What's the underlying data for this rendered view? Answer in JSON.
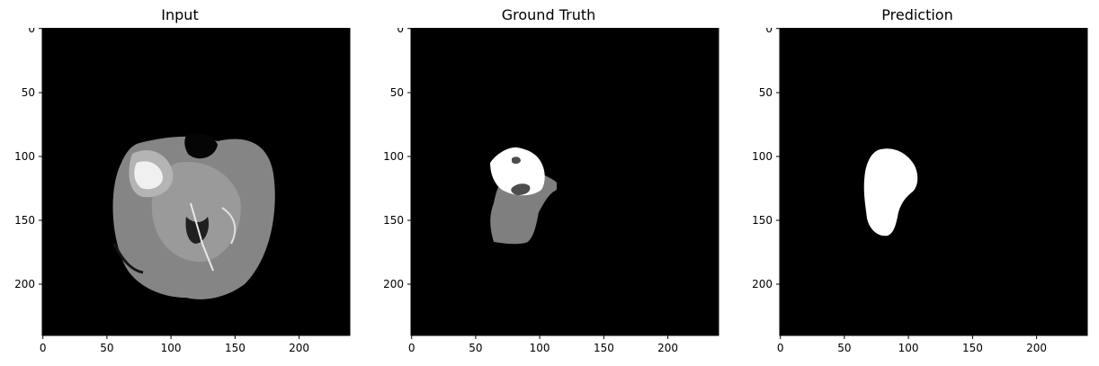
{
  "panels": [
    {
      "title": "Input"
    },
    {
      "title": "Ground Truth"
    },
    {
      "title": "Prediction"
    }
  ],
  "axes": {
    "x_ticks": [
      "0",
      "50",
      "100",
      "150",
      "200"
    ],
    "y_ticks": [
      "0",
      "50",
      "100",
      "150",
      "200"
    ],
    "extent": [
      0,
      240
    ]
  },
  "colors": {
    "background": "#000000",
    "edema": "#7f7f7f",
    "tumor_core": "#ffffff",
    "necrosis": "#4d4d4d"
  }
}
